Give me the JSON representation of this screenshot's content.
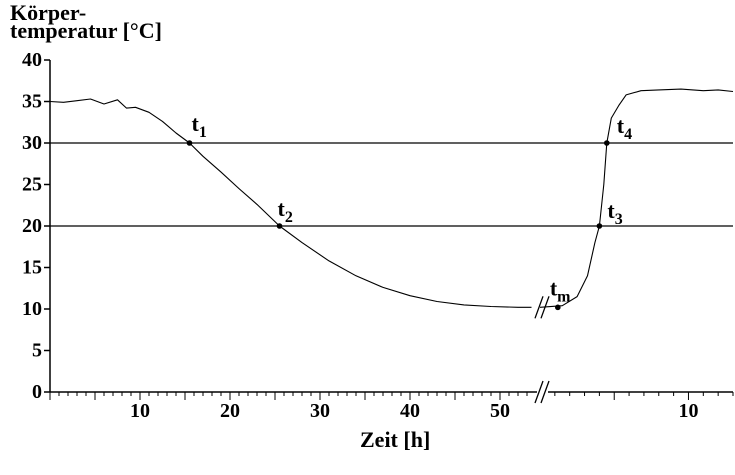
{
  "chart_data": {
    "type": "line",
    "ylabel_lines": [
      "Körper-",
      "temperatur [°C]"
    ],
    "xlabel": "Zeit [h]",
    "ylim": [
      0,
      40
    ],
    "yticks": [
      0,
      5,
      10,
      15,
      20,
      25,
      30,
      35,
      40
    ],
    "grid": false,
    "broken_axis": true,
    "segments": [
      {
        "name": "",
        "xlim": [
          0,
          55
        ],
        "xticks": [
          10,
          20,
          30,
          40,
          50
        ]
      },
      {
        "name": "",
        "xlim": [
          0,
          13
        ],
        "xticks": [
          10
        ]
      }
    ],
    "reference_lines": [
      30,
      20
    ],
    "series": [
      {
        "name": "",
        "segment": 0,
        "points": [
          [
            0,
            35.0
          ],
          [
            1.5,
            34.9
          ],
          [
            3,
            35.1
          ],
          [
            4.5,
            35.3
          ],
          [
            6,
            34.7
          ],
          [
            7.5,
            35.2
          ],
          [
            8.5,
            34.2
          ],
          [
            9.5,
            34.3
          ],
          [
            11,
            33.7
          ],
          [
            12.5,
            32.6
          ],
          [
            14,
            31.2
          ],
          [
            15.5,
            30.0
          ],
          [
            17,
            28.4
          ],
          [
            19,
            26.5
          ],
          [
            21,
            24.5
          ],
          [
            23,
            22.6
          ],
          [
            25.5,
            20.0
          ],
          [
            28,
            18.0
          ],
          [
            31,
            15.8
          ],
          [
            34,
            14.0
          ],
          [
            37,
            12.6
          ],
          [
            40,
            11.6
          ],
          [
            43,
            10.9
          ],
          [
            46,
            10.5
          ],
          [
            49,
            10.3
          ],
          [
            52,
            10.2
          ],
          [
            53.5,
            10.2
          ]
        ]
      },
      {
        "name": "",
        "segment": 1,
        "points": [
          [
            0,
            10.2
          ],
          [
            1.5,
            10.4
          ],
          [
            2.5,
            11.5
          ],
          [
            3.2,
            14
          ],
          [
            3.7,
            18
          ],
          [
            4.0,
            20.0
          ],
          [
            4.3,
            25
          ],
          [
            4.5,
            30.0
          ],
          [
            4.8,
            33
          ],
          [
            5.3,
            34.5
          ],
          [
            5.8,
            35.8
          ],
          [
            6.8,
            36.3
          ],
          [
            8,
            36.4
          ],
          [
            9.5,
            36.5
          ],
          [
            11,
            36.3
          ],
          [
            12,
            36.4
          ],
          [
            13,
            36.2
          ]
        ]
      }
    ],
    "annotations": [
      {
        "label": "t",
        "sub": "1",
        "segment": 0,
        "x": 15.5,
        "y": 30.0
      },
      {
        "label": "t",
        "sub": "2",
        "segment": 0,
        "x": 25.5,
        "y": 20.0
      },
      {
        "label": "t",
        "sub": "m",
        "segment": 1,
        "x": 1.2,
        "y": 10.2
      },
      {
        "label": "t",
        "sub": "3",
        "segment": 1,
        "x": 4.0,
        "y": 20.0
      },
      {
        "label": "t",
        "sub": "4",
        "segment": 1,
        "x": 4.5,
        "y": 30.0
      }
    ]
  },
  "colors": {
    "line": "#000000",
    "background": "#ffffff"
  }
}
